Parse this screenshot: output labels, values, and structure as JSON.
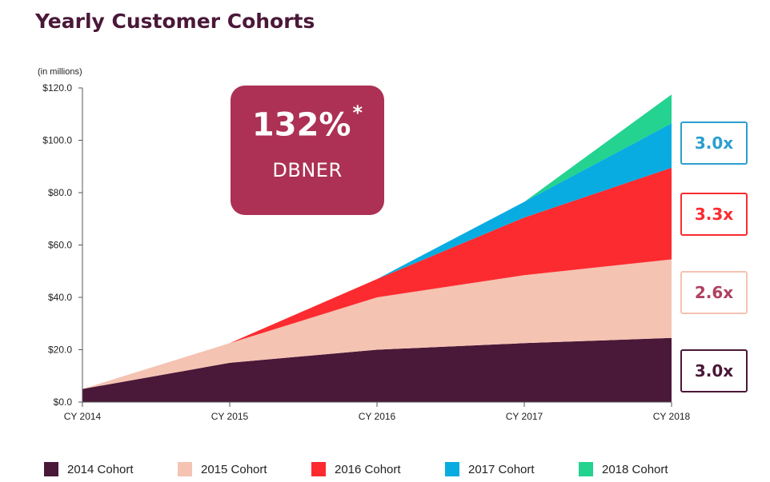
{
  "chart_data": {
    "type": "area",
    "stacked": true,
    "title": "Yearly Customer Cohorts",
    "units_note": "(in millions)",
    "categories": [
      "CY 2014",
      "CY 2015",
      "CY 2016",
      "CY 2017",
      "CY 2018"
    ],
    "ylim": [
      0,
      120
    ],
    "y_ticks": [
      "$0.0",
      "$20.0",
      "$40.0",
      "$60.0",
      "$80.0",
      "$100.0",
      "$120.0"
    ],
    "grid": false,
    "legend_position": "bottom",
    "series": [
      {
        "name": "2014 Cohort",
        "color": "#4a1838",
        "values": [
          5,
          15,
          20,
          22.5,
          24.5
        ]
      },
      {
        "name": "2015 Cohort",
        "color": "#f5c3b2",
        "values": [
          null,
          7.5,
          20,
          26,
          30
        ]
      },
      {
        "name": "2016 Cohort",
        "color": "#fc2b30",
        "values": [
          null,
          null,
          7,
          22,
          35
        ]
      },
      {
        "name": "2017 Cohort",
        "color": "#08ace1",
        "values": [
          null,
          null,
          null,
          6,
          17
        ]
      },
      {
        "name": "2018 Cohort",
        "color": "#23d38f",
        "values": [
          null,
          null,
          null,
          null,
          11
        ]
      }
    ],
    "callout": {
      "value": "132%",
      "asterisk": "*",
      "label": "DBNER",
      "color": "#ac3154"
    },
    "multipliers": [
      {
        "label": "3.0x",
        "color": "#2b9fcf",
        "series": "2017 Cohort"
      },
      {
        "label": "3.3x",
        "color": "#fc2b30",
        "series": "2016 Cohort"
      },
      {
        "label": "2.6x",
        "color": "#b04060",
        "border": "#f5c3b2",
        "series": "2015 Cohort"
      },
      {
        "label": "3.0x",
        "color": "#4a1838",
        "series": "2014 Cohort"
      }
    ]
  }
}
